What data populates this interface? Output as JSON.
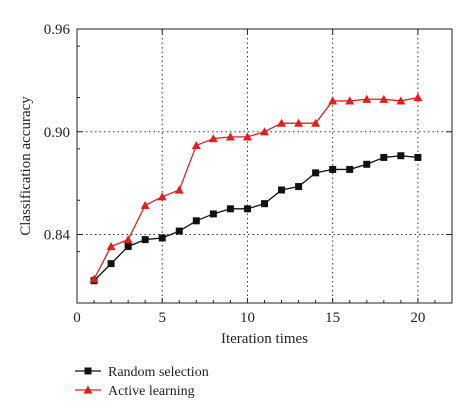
{
  "chart_data": {
    "type": "line",
    "xlabel": "Iteration times",
    "ylabel": "Classification accuracy",
    "xlim": [
      0,
      22
    ],
    "ylim": [
      0.8,
      0.96
    ],
    "xticks": [
      0,
      5,
      10,
      15,
      20
    ],
    "yticks": [
      0.84,
      0.9,
      0.96
    ],
    "xtick_labels": [
      "0",
      "5",
      "10",
      "15",
      "20"
    ],
    "ytick_labels": [
      "0.84",
      "0.90",
      "0.96"
    ],
    "grid": "dotted at ticks",
    "legend_position": "bottom-left, below plot",
    "series": [
      {
        "name": "Random selection",
        "color": "#111111",
        "marker": "square",
        "x": [
          1,
          2,
          3,
          4,
          5,
          6,
          7,
          8,
          9,
          10,
          11,
          12,
          13,
          14,
          15,
          16,
          17,
          18,
          19,
          20
        ],
        "y": [
          0.813,
          0.823,
          0.833,
          0.837,
          0.838,
          0.842,
          0.848,
          0.852,
          0.855,
          0.855,
          0.858,
          0.866,
          0.868,
          0.876,
          0.878,
          0.878,
          0.881,
          0.885,
          0.886,
          0.885
        ]
      },
      {
        "name": "Active learning",
        "color": "#e02020",
        "marker": "triangle",
        "x": [
          1,
          2,
          3,
          4,
          5,
          6,
          7,
          8,
          9,
          10,
          11,
          12,
          13,
          14,
          15,
          16,
          17,
          18,
          19,
          20
        ],
        "y": [
          0.814,
          0.833,
          0.837,
          0.857,
          0.862,
          0.866,
          0.892,
          0.896,
          0.897,
          0.897,
          0.9,
          0.905,
          0.905,
          0.905,
          0.918,
          0.918,
          0.919,
          0.919,
          0.918,
          0.92
        ]
      }
    ]
  }
}
